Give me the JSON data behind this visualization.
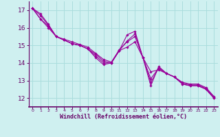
{
  "xlabel": "Windchill (Refroidissement éolien,°C)",
  "background_color": "#cff0f0",
  "grid_color": "#aadddd",
  "line_color": "#990099",
  "spine_color": "#660066",
  "ylim": [
    11.5,
    17.5
  ],
  "xlim": [
    -0.5,
    23.5
  ],
  "yticks": [
    12,
    13,
    14,
    15,
    16,
    17
  ],
  "xticks": [
    0,
    1,
    2,
    3,
    4,
    5,
    6,
    7,
    8,
    9,
    10,
    11,
    12,
    13,
    14,
    15,
    16,
    17,
    18,
    19,
    20,
    21,
    22,
    23
  ],
  "series": [
    [
      17.1,
      16.8,
      16.2,
      15.5,
      15.3,
      15.1,
      15.0,
      14.8,
      14.3,
      13.9,
      14.0,
      14.7,
      15.6,
      15.8,
      14.3,
      12.7,
      13.8,
      13.4,
      13.2,
      12.8,
      12.7,
      12.7,
      12.5,
      12.0
    ],
    [
      17.1,
      16.5,
      16.0,
      15.5,
      15.3,
      15.1,
      15.0,
      14.8,
      14.5,
      14.1,
      14.0,
      14.7,
      14.9,
      15.2,
      14.3,
      13.5,
      13.6,
      13.4,
      13.2,
      12.9,
      12.8,
      12.8,
      12.6,
      12.1
    ],
    [
      17.1,
      16.5,
      16.1,
      15.5,
      15.35,
      15.2,
      15.05,
      14.9,
      14.55,
      14.2,
      14.05,
      14.75,
      15.2,
      15.5,
      14.3,
      13.1,
      13.7,
      13.4,
      13.2,
      12.85,
      12.75,
      12.75,
      12.55,
      12.05
    ],
    [
      17.1,
      16.7,
      16.15,
      15.5,
      15.3,
      15.1,
      15.0,
      14.8,
      14.4,
      14.0,
      14.0,
      14.7,
      15.25,
      15.65,
      14.3,
      12.9,
      13.7,
      13.4,
      13.2,
      12.8,
      12.7,
      12.7,
      12.5,
      12.0
    ]
  ]
}
